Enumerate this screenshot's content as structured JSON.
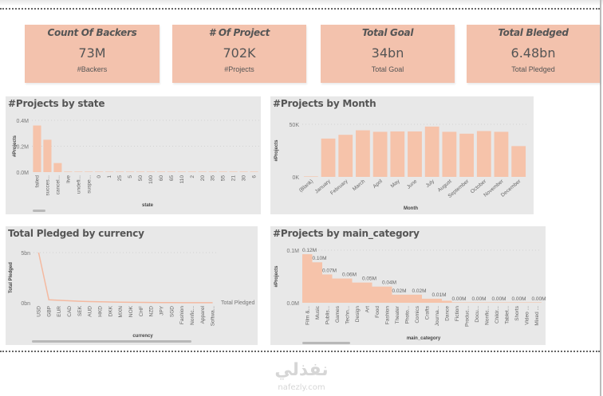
{
  "kpis": [
    {
      "title": "Count Of Backers",
      "value": "73M",
      "subtitle": "#Backers"
    },
    {
      "title": "# Of Project",
      "value": "702K",
      "subtitle": "#Projects"
    },
    {
      "title": "Total Goal",
      "value": "34bn",
      "subtitle": "Total Goal"
    },
    {
      "title": "Total Bledged",
      "value": "6.48bn",
      "subtitle": "Total Pledged"
    }
  ],
  "watermark": {
    "arabic": "نفذلي",
    "latin": "nafezly.com"
  },
  "colors": {
    "bar": "#f6c3aa",
    "line": "#f4b9a0",
    "panel_bg": "#e8e8e8",
    "kpi_bg": "#f3c2ad"
  },
  "chart_data": [
    {
      "id": "state",
      "type": "bar",
      "title": "#Projects by state",
      "xlabel": "state",
      "ylabel": "#Projects",
      "yticks": [
        "0.0M",
        "0.2M",
        "0.4M"
      ],
      "ylim": [
        0,
        0.4
      ],
      "categories": [
        "failed",
        "succes...",
        "cancel...",
        "live",
        "undefi...",
        "suspe...",
        "0",
        "1",
        "25",
        "5",
        "50",
        "100",
        "60",
        "65",
        "110",
        "2",
        "20",
        "35",
        "55",
        "21",
        "30",
        "6"
      ],
      "values": [
        0.36,
        0.25,
        0.07,
        0.004,
        0.003,
        0.002,
        0.0005,
        0.0004,
        0.0003,
        0.0003,
        0.0002,
        0.0002,
        0.0002,
        0.0001,
        0.0001,
        0.0001,
        0.0001,
        0.0001,
        0.0001,
        0.0001,
        0.0001,
        0.0001
      ]
    },
    {
      "id": "month",
      "type": "bar",
      "title": "#Projects by Month",
      "xlabel": "Month",
      "ylabel": "#Projects",
      "yticks": [
        "0K",
        "50K"
      ],
      "ylim": [
        0,
        70000
      ],
      "categories": [
        "(Blank)",
        "January",
        "February",
        "March",
        "April",
        "May",
        "June",
        "July",
        "August",
        "September",
        "October",
        "November",
        "December"
      ],
      "values": [
        500,
        51000,
        56000,
        62000,
        60000,
        60500,
        60500,
        67000,
        60000,
        57500,
        61000,
        60000,
        41000
      ]
    },
    {
      "id": "currency",
      "type": "line",
      "title": "Total Pledged by currency",
      "xlabel": "currency",
      "ylabel": "Total Pledged",
      "legend": "Total Pledged",
      "legend_position": "right",
      "yticks": [
        "0bn",
        "5bn"
      ],
      "ylim": [
        0,
        5
      ],
      "categories": [
        "USD",
        "GBP",
        "EUR",
        "CAD",
        "SEK",
        "AUD",
        "HKD",
        "DKK",
        "MXN",
        "NOK",
        "CHF",
        "NZD",
        "JPY",
        "SGD",
        "Fashion",
        "Nonfic...",
        "Apparel",
        "Softwa..."
      ],
      "values": [
        5.0,
        0.3,
        0.25,
        0.2,
        0.15,
        0.12,
        0.1,
        0.08,
        0.06,
        0.05,
        0.04,
        0.03,
        0.02,
        0.02,
        0.01,
        0.01,
        0.01,
        0.01
      ]
    },
    {
      "id": "main_category",
      "type": "bar",
      "title": "#Projects by main_category",
      "xlabel": "main_category",
      "ylabel": "#Projects",
      "yticks": [
        "0.0M",
        "0.1M"
      ],
      "ylim": [
        0,
        0.13
      ],
      "categories": [
        "Film &...",
        "Music",
        "Publis...",
        "Games",
        "Techn...",
        "Design",
        "Art",
        "Food",
        "Fashion",
        "Theater",
        "Photo...",
        "Comics",
        "Crafts",
        "Journa...",
        "Dance",
        "Fiction",
        "Produc...",
        "Docu...",
        "Nonfic...",
        "Childr...",
        "Tablet...",
        "Shorts",
        "Video ...",
        "Mixed ..."
      ],
      "values": [
        0.12,
        0.1,
        0.07,
        0.06,
        0.06,
        0.05,
        0.05,
        0.04,
        0.04,
        0.02,
        0.02,
        0.02,
        0.01,
        0.01,
        0.005,
        0,
        0,
        0,
        0,
        0,
        0,
        0,
        0,
        0
      ],
      "data_labels": [
        "0.12M",
        "0.10M",
        "0.07M",
        "",
        "0.06M",
        "",
        "0.05M",
        "",
        "0.04M",
        "0.02M",
        "",
        "0.02M",
        "",
        "0.01M",
        "",
        "0.00M",
        "",
        "0.00M",
        "",
        "0.00M",
        "",
        "0.00M",
        "",
        "0.00M"
      ]
    }
  ]
}
